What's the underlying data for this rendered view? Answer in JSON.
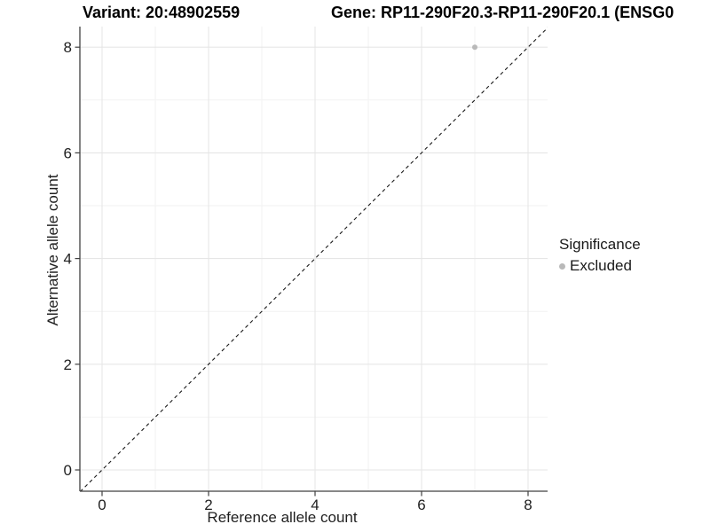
{
  "figure": {
    "title_left": "Variant: 20:48902559",
    "title_right": "Gene: RP11-290F20.3-RP11-290F20.1 (ENSG0"
  },
  "chart_data": {
    "type": "scatter",
    "xlabel": "Reference allele count",
    "ylabel": "Alternative allele count",
    "xlim": [
      -0.4,
      8.4
    ],
    "ylim": [
      -0.4,
      8.4
    ],
    "x_breaks": [
      0,
      2,
      4,
      6,
      8
    ],
    "y_breaks": [
      0,
      2,
      4,
      6,
      8
    ],
    "x_tick_labels": [
      "0",
      "2",
      "4",
      "6",
      "8"
    ],
    "y_tick_labels": [
      "0",
      "2",
      "4",
      "6",
      "8"
    ],
    "minor_breaks": [
      1,
      3,
      5,
      7
    ],
    "grid": "on",
    "points": [
      {
        "x": 7,
        "y": 8,
        "series": "Excluded"
      }
    ],
    "reference_line": {
      "kind": "identity",
      "linetype": "dashed"
    },
    "legend": {
      "position": "right",
      "title": "Significance",
      "entries": [
        {
          "label": "Excluded",
          "color": "#b9b9b9"
        }
      ]
    }
  },
  "colors": {
    "background": "#ffffff",
    "axis": "#404040",
    "tick_label": "#1f1f1f",
    "grid_major": "#e6e6e6",
    "grid_minor": "#f2f2f2",
    "reference_line": "#1a1a1a",
    "point_excluded": "#b9b9b9"
  }
}
